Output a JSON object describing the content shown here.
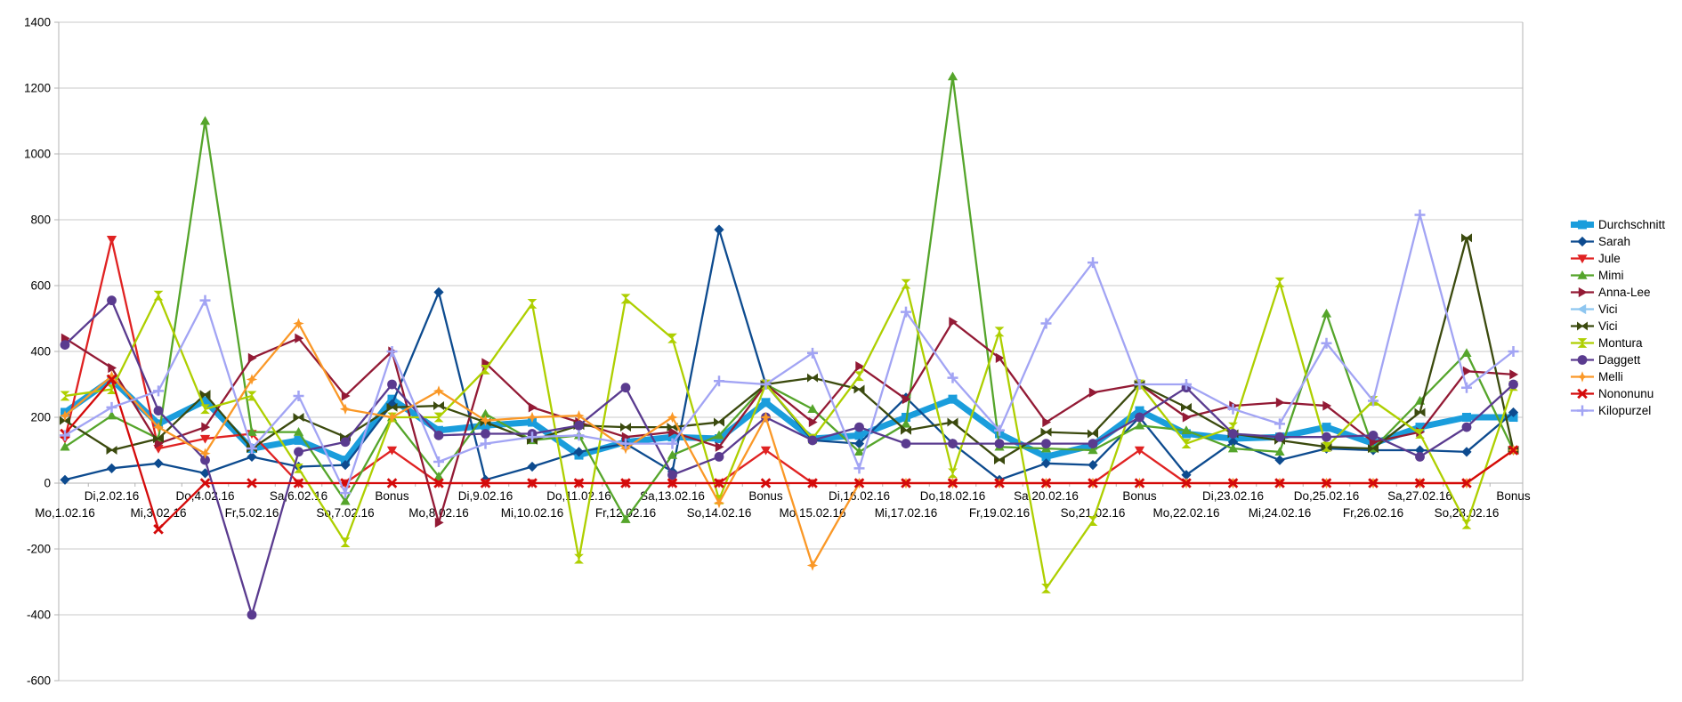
{
  "chart_data": {
    "type": "line",
    "title": "",
    "xlabel": "",
    "ylabel": "",
    "ylim": [
      -600,
      1400
    ],
    "ytick_step": 200,
    "ytick_labels": [
      "-600",
      "-400",
      "-200",
      "0",
      "200",
      "400",
      "600",
      "800",
      "1000",
      "1200",
      "1400"
    ],
    "grid": true,
    "grid_color": "#c9c9c9",
    "axis_color": "#b3b3b3",
    "text_color": "#000000",
    "legend_position": "right",
    "categories": [
      "Mo,1.02.16",
      "Di,2.02.16",
      "Mi,3.02.16",
      "Do,4.02.16",
      "Fr,5.02.16",
      "Sa,6.02.16",
      "So,7.02.16",
      "Bonus",
      "Mo,8.02.16",
      "Di,9.02.16",
      "Mi,10.02.16",
      "Do,11.02.16",
      "Fr,12.02.16",
      "Sa,13.02.16",
      "So,14.02.16",
      "Bonus",
      "Mo,15.02.16",
      "Di,16.02.16",
      "Mi,17.02.16",
      "Do,18.02.16",
      "Fr,19.02.16",
      "Sa,20.02.16",
      "So,21.02.16",
      "Bonus",
      "Mo,22.02.16",
      "Di,23.02.16",
      "Mi,24.02.16",
      "Do,25.02.16",
      "Fr,26.02.16",
      "Sa,27.02.16",
      "So,28.02.16",
      "Bonus"
    ],
    "series": [
      {
        "name": "Durchschnitt",
        "color": "#1a9ddc",
        "marker": "square",
        "line_width": 7,
        "values": [
          215,
          315,
          180,
          250,
          105,
          130,
          70,
          255,
          160,
          175,
          185,
          85,
          125,
          140,
          135,
          245,
          135,
          145,
          200,
          255,
          150,
          80,
          115,
          220,
          150,
          135,
          140,
          170,
          120,
          170,
          200,
          200
        ]
      },
      {
        "name": "Sarah",
        "color": "#0d4b8f",
        "marker": "diamond",
        "line_width": 2.3,
        "values": [
          10,
          45,
          60,
          30,
          80,
          50,
          55,
          240,
          580,
          10,
          50,
          95,
          120,
          35,
          770,
          300,
          130,
          120,
          260,
          120,
          10,
          60,
          55,
          200,
          25,
          125,
          70,
          105,
          100,
          100,
          95,
          215
        ]
      },
      {
        "name": "Jule",
        "color": "#e02222",
        "marker": "triangle-down",
        "line_width": 2.3,
        "values": [
          135,
          740,
          105,
          135,
          150,
          0,
          0,
          100,
          0,
          0,
          0,
          0,
          0,
          0,
          0,
          100,
          0,
          0,
          0,
          0,
          0,
          0,
          0,
          100,
          0,
          0,
          0,
          0,
          0,
          0,
          0,
          100
        ]
      },
      {
        "name": "Mimi",
        "color": "#55a52b",
        "marker": "triangle-up",
        "line_width": 2.3,
        "values": [
          110,
          205,
          135,
          1100,
          155,
          155,
          -55,
          200,
          20,
          210,
          130,
          145,
          -110,
          85,
          145,
          300,
          225,
          95,
          180,
          1235,
          110,
          105,
          100,
          175,
          160,
          105,
          95,
          515,
          105,
          250,
          395,
          100
        ]
      },
      {
        "name": "Anna-Lee",
        "color": "#931a35",
        "marker": "arrow-right",
        "line_width": 2.3,
        "values": [
          440,
          350,
          120,
          170,
          380,
          440,
          265,
          400,
          -120,
          365,
          230,
          185,
          140,
          155,
          110,
          300,
          185,
          355,
          255,
          490,
          380,
          185,
          275,
          300,
          200,
          235,
          245,
          235,
          125,
          155,
          340,
          330
        ]
      },
      {
        "name": "Vici",
        "color": "#8ec6f0",
        "marker": "arrow-left",
        "line_width": 2.3,
        "values": [
          215,
          315,
          180,
          250,
          105,
          130,
          70,
          255,
          160,
          175,
          185,
          85,
          125,
          140,
          135,
          245,
          135,
          145,
          200,
          255,
          150,
          80,
          115,
          220,
          150,
          135,
          140,
          170,
          120,
          170,
          200,
          200
        ]
      },
      {
        "name": "Vici",
        "color": "#3b4a0e",
        "marker": "bowtie-x",
        "line_width": 2.3,
        "values": [
          190,
          100,
          135,
          270,
          105,
          200,
          140,
          230,
          235,
          185,
          130,
          175,
          170,
          170,
          185,
          300,
          320,
          285,
          160,
          185,
          70,
          155,
          150,
          300,
          230,
          150,
          130,
          110,
          105,
          215,
          745,
          100
        ]
      },
      {
        "name": "Montura",
        "color": "#aecf00",
        "marker": "hourglass",
        "line_width": 2.3,
        "values": [
          265,
          285,
          570,
          225,
          265,
          45,
          -180,
          200,
          200,
          345,
          545,
          -230,
          560,
          440,
          -50,
          300,
          135,
          325,
          605,
          30,
          460,
          -320,
          -115,
          300,
          120,
          170,
          610,
          110,
          250,
          150,
          -125,
          295
        ]
      },
      {
        "name": "Daggett",
        "color": "#5a3b8f",
        "marker": "circle",
        "line_width": 2.3,
        "values": [
          420,
          555,
          220,
          70,
          -400,
          95,
          125,
          300,
          145,
          150,
          150,
          175,
          290,
          25,
          80,
          200,
          130,
          170,
          120,
          120,
          120,
          120,
          120,
          200,
          290,
          150,
          140,
          140,
          145,
          80,
          170,
          300
        ]
      },
      {
        "name": "Melli",
        "color": "#fa9827",
        "marker": "star-plus",
        "line_width": 2.3,
        "values": [
          205,
          325,
          170,
          90,
          315,
          485,
          225,
          200,
          280,
          190,
          200,
          205,
          105,
          200,
          -60,
          200,
          -250,
          0,
          0,
          0,
          0,
          0,
          0,
          0,
          0,
          0,
          0,
          0,
          0,
          0,
          0,
          100
        ]
      },
      {
        "name": "Nononunu",
        "color": "#d40a0a",
        "marker": "x-cross",
        "line_width": 2.3,
        "values": [
          150,
          315,
          -140,
          0,
          0,
          0,
          0,
          0,
          0,
          0,
          0,
          0,
          0,
          0,
          0,
          0,
          0,
          0,
          0,
          0,
          0,
          0,
          0,
          0,
          0,
          0,
          0,
          0,
          0,
          0,
          0,
          100
        ]
      },
      {
        "name": "Kilopurzel",
        "color": "#a2a4f4",
        "marker": "plus",
        "line_width": 2.3,
        "values": [
          145,
          230,
          280,
          555,
          105,
          265,
          -30,
          400,
          65,
          120,
          140,
          145,
          120,
          120,
          310,
          300,
          395,
          45,
          520,
          320,
          160,
          485,
          670,
          300,
          300,
          225,
          180,
          425,
          250,
          815,
          290,
          400
        ]
      }
    ]
  }
}
